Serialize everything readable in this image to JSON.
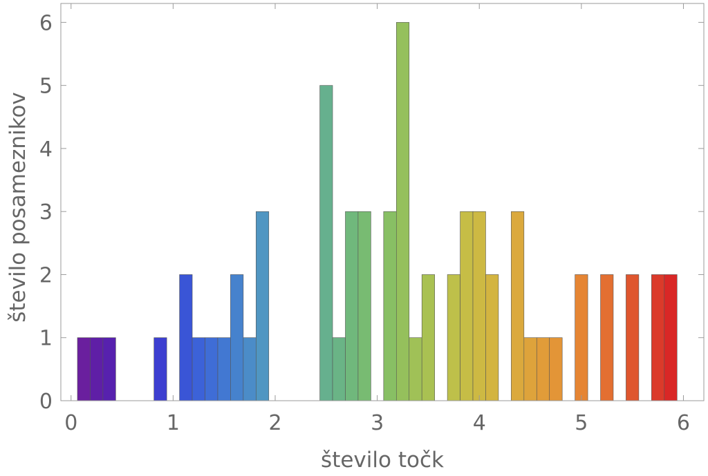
{
  "chart_data": {
    "type": "bar",
    "title": "",
    "xlabel": "število točk",
    "ylabel": "število posameznikov",
    "xlim": [
      -0.1,
      6.2
    ],
    "ylim": [
      0,
      6.3
    ],
    "xticks": [
      "0",
      "1",
      "2",
      "3",
      "4",
      "5",
      "6"
    ],
    "yticks": [
      "0",
      "1",
      "2",
      "3",
      "4",
      "5",
      "6"
    ],
    "grid": false,
    "bin_width": 0.125,
    "bins": [
      {
        "x0": 0.0625,
        "x1": 0.1875,
        "count": 1,
        "color": "#6a1f9e"
      },
      {
        "x0": 0.1875,
        "x1": 0.3125,
        "count": 1,
        "color": "#5f1fa6"
      },
      {
        "x0": 0.3125,
        "x1": 0.4375,
        "count": 1,
        "color": "#5721ae"
      },
      {
        "x0": 0.8125,
        "x1": 0.9375,
        "count": 1,
        "color": "#3d3fd0"
      },
      {
        "x0": 1.0625,
        "x1": 1.1875,
        "count": 2,
        "color": "#3a55d6"
      },
      {
        "x0": 1.1875,
        "x1": 1.3125,
        "count": 1,
        "color": "#3c62d8"
      },
      {
        "x0": 1.3125,
        "x1": 1.4375,
        "count": 1,
        "color": "#3f6dd6"
      },
      {
        "x0": 1.4375,
        "x1": 1.5625,
        "count": 1,
        "color": "#4278d2"
      },
      {
        "x0": 1.5625,
        "x1": 1.6875,
        "count": 2,
        "color": "#4682cd"
      },
      {
        "x0": 1.6875,
        "x1": 1.8125,
        "count": 1,
        "color": "#4b8cc8"
      },
      {
        "x0": 1.8125,
        "x1": 1.9375,
        "count": 3,
        "color": "#5096c2"
      },
      {
        "x0": 2.4375,
        "x1": 2.5625,
        "count": 5,
        "color": "#66b08e"
      },
      {
        "x0": 2.5625,
        "x1": 2.6875,
        "count": 1,
        "color": "#6ab486"
      },
      {
        "x0": 2.6875,
        "x1": 2.8125,
        "count": 3,
        "color": "#70b87c"
      },
      {
        "x0": 2.8125,
        "x1": 2.9375,
        "count": 3,
        "color": "#78bb72"
      },
      {
        "x0": 3.0625,
        "x1": 3.1875,
        "count": 3,
        "color": "#88bf64"
      },
      {
        "x0": 3.1875,
        "x1": 3.3125,
        "count": 6,
        "color": "#95c05c"
      },
      {
        "x0": 3.3125,
        "x1": 3.4375,
        "count": 1,
        "color": "#a0c157"
      },
      {
        "x0": 3.4375,
        "x1": 3.5625,
        "count": 2,
        "color": "#a9c152"
      },
      {
        "x0": 3.6875,
        "x1": 3.8125,
        "count": 2,
        "color": "#bec04a"
      },
      {
        "x0": 3.8125,
        "x1": 3.9375,
        "count": 3,
        "color": "#c6bd46"
      },
      {
        "x0": 3.9375,
        "x1": 4.0625,
        "count": 3,
        "color": "#cdb943"
      },
      {
        "x0": 4.0625,
        "x1": 4.1875,
        "count": 2,
        "color": "#d3b440"
      },
      {
        "x0": 4.3125,
        "x1": 4.4375,
        "count": 3,
        "color": "#dba93d"
      },
      {
        "x0": 4.4375,
        "x1": 4.5625,
        "count": 1,
        "color": "#dea33b"
      },
      {
        "x0": 4.5625,
        "x1": 4.6875,
        "count": 1,
        "color": "#e19c39"
      },
      {
        "x0": 4.6875,
        "x1": 4.8125,
        "count": 1,
        "color": "#e39537"
      },
      {
        "x0": 4.9375,
        "x1": 5.0625,
        "count": 2,
        "color": "#e58534"
      },
      {
        "x0": 5.1875,
        "x1": 5.3125,
        "count": 2,
        "color": "#e36f31"
      },
      {
        "x0": 5.4375,
        "x1": 5.5625,
        "count": 2,
        "color": "#df562e"
      },
      {
        "x0": 5.6875,
        "x1": 5.8125,
        "count": 2,
        "color": "#db3a2a"
      },
      {
        "x0": 5.8125,
        "x1": 5.9375,
        "count": 2,
        "color": "#d92726"
      }
    ]
  }
}
